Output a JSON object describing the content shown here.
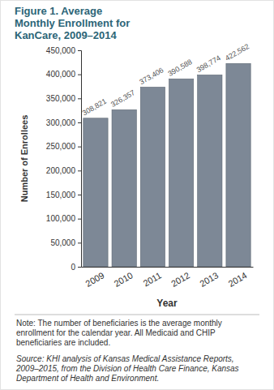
{
  "chart_data": {
    "type": "bar",
    "title": "Figure 1. Average Monthly Enrollment for KanCare, 2009–2014",
    "x_label": "Year",
    "y_label": "Number of Enrollees",
    "categories": [
      "2009",
      "2010",
      "2011",
      "2012",
      "2013",
      "2014"
    ],
    "values": [
      308821,
      326357,
      373406,
      390588,
      398774,
      422562
    ],
    "value_labels": [
      "308,821",
      "326,357",
      "373,406",
      "390,588",
      "398,774",
      "422,562"
    ],
    "color": "#7d8896",
    "data_labels": true,
    "grid": false,
    "ylim": [
      0,
      450000
    ],
    "yticks": [
      0,
      {
        "value": 50000,
        "label": "50,000"
      },
      {
        "value": 100000,
        "label": "100,000"
      },
      {
        "value": 150000,
        "label": "150,000"
      },
      {
        "value": 200000,
        "label": "200,000"
      },
      {
        "value": 250000,
        "label": "250,000"
      },
      {
        "value": 300000,
        "label": "300,000"
      },
      {
        "value": 350000,
        "label": "350,000"
      },
      {
        "value": 400000,
        "label": "400,000"
      },
      {
        "value": 450000,
        "label": "450,000"
      }
    ],
    "annotations": [
      "Note: The number of beneficiaries is the average monthly enrollment for the calendar year. All Medicaid and CHIP beneficiaries are included.",
      "Source: KHI analysis of Kansas Medical Assistance Reports, 2009–2015, from the Division of Health Care Finance, Kansas Department of Health and Environment."
    ]
  }
}
